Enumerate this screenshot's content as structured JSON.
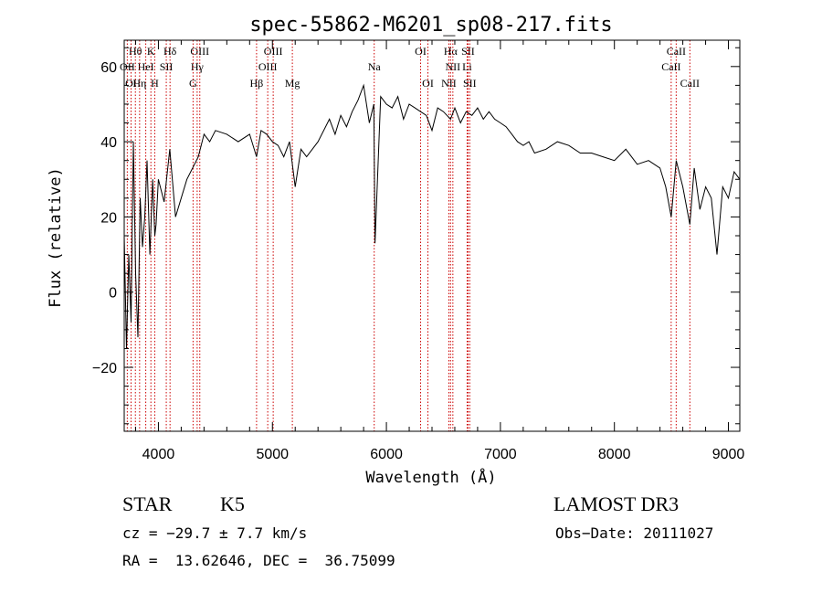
{
  "chart_data": {
    "type": "line",
    "title": "spec-55862-M6201_sp08-217.fits",
    "xlabel": "Wavelength (Å)",
    "ylabel": "Flux (relative)",
    "xlim": [
      3700,
      9100
    ],
    "ylim": [
      -37,
      67
    ],
    "x_ticks": [
      4000,
      5000,
      6000,
      7000,
      8000,
      9000
    ],
    "y_ticks": [
      -20,
      0,
      20,
      40,
      60
    ],
    "series": [
      {
        "name": "spectrum",
        "x": [
          3700,
          3720,
          3740,
          3760,
          3780,
          3800,
          3820,
          3840,
          3860,
          3880,
          3900,
          3925,
          3950,
          3968,
          3980,
          4000,
          4050,
          4100,
          4150,
          4200,
          4250,
          4300,
          4350,
          4400,
          4450,
          4500,
          4600,
          4700,
          4800,
          4861,
          4900,
          4950,
          5000,
          5050,
          5100,
          5150,
          5175,
          5200,
          5250,
          5300,
          5400,
          5500,
          5550,
          5600,
          5650,
          5700,
          5750,
          5800,
          5850,
          5890,
          5900,
          5950,
          6000,
          6050,
          6100,
          6150,
          6200,
          6250,
          6300,
          6350,
          6400,
          6450,
          6500,
          6563,
          6600,
          6650,
          6700,
          6750,
          6800,
          6850,
          6900,
          6950,
          7000,
          7050,
          7100,
          7150,
          7200,
          7250,
          7300,
          7400,
          7500,
          7600,
          7700,
          7800,
          7900,
          8000,
          8100,
          8200,
          8300,
          8400,
          8450,
          8498,
          8542,
          8600,
          8662,
          8700,
          8750,
          8800,
          8850,
          8900,
          8950,
          9000,
          9050,
          9100
        ],
        "values": [
          15,
          -15,
          10,
          -8,
          40,
          5,
          -12,
          25,
          12,
          20,
          35,
          10,
          30,
          15,
          18,
          30,
          24,
          38,
          20,
          25,
          30,
          33,
          36,
          42,
          40,
          43,
          42,
          40,
          42,
          36,
          43,
          42,
          40,
          39,
          36,
          40,
          34,
          28,
          38,
          36,
          40,
          46,
          42,
          47,
          44,
          48,
          51,
          55,
          45,
          50,
          13,
          52,
          50,
          49,
          52,
          46,
          50,
          49,
          48,
          47,
          43,
          49,
          48,
          46,
          49,
          45,
          48,
          47,
          49,
          46,
          48,
          46,
          45,
          44,
          42,
          40,
          39,
          40,
          37,
          38,
          40,
          39,
          37,
          37,
          36,
          35,
          38,
          34,
          35,
          33,
          28,
          20,
          35,
          28,
          18,
          33,
          22,
          28,
          25,
          10,
          28,
          25,
          32,
          30
        ]
      }
    ],
    "line_markers": [
      {
        "label": "Hθ",
        "wavelength": 3798,
        "row": 1
      },
      {
        "label": "K",
        "wavelength": 3934,
        "row": 1
      },
      {
        "label": "Hδ",
        "wavelength": 4102,
        "row": 1
      },
      {
        "label": "OIII",
        "wavelength": 4363,
        "row": 1
      },
      {
        "label": "OIII",
        "wavelength": 5007,
        "row": 1
      },
      {
        "label": "OI",
        "wavelength": 6300,
        "row": 1
      },
      {
        "label": "Hα",
        "wavelength": 6563,
        "row": 1
      },
      {
        "label": "SII",
        "wavelength": 6716,
        "row": 1
      },
      {
        "label": "CaII",
        "wavelength": 8542,
        "row": 1
      },
      {
        "label": "OII",
        "wavelength": 3727,
        "row": 2
      },
      {
        "label": "HeI",
        "wavelength": 3889,
        "row": 2
      },
      {
        "label": "SII",
        "wavelength": 4069,
        "row": 2
      },
      {
        "label": "Hγ",
        "wavelength": 4340,
        "row": 2
      },
      {
        "label": "OIII",
        "wavelength": 4959,
        "row": 2
      },
      {
        "label": "Na",
        "wavelength": 5893,
        "row": 2
      },
      {
        "label": "NII",
        "wavelength": 6583,
        "row": 2
      },
      {
        "label": "Li",
        "wavelength": 6708,
        "row": 2
      },
      {
        "label": "CaII",
        "wavelength": 8498,
        "row": 2
      },
      {
        "label": "OI",
        "wavelength": 3760,
        "row": 3
      },
      {
        "label": "Hη",
        "wavelength": 3835,
        "row": 3
      },
      {
        "label": "H",
        "wavelength": 3968,
        "row": 3
      },
      {
        "label": "G",
        "wavelength": 4304,
        "row": 3
      },
      {
        "label": "Hβ",
        "wavelength": 4861,
        "row": 3
      },
      {
        "label": "Mg",
        "wavelength": 5175,
        "row": 3
      },
      {
        "label": "OI",
        "wavelength": 6364,
        "row": 3
      },
      {
        "label": "NII",
        "wavelength": 6548,
        "row": 3
      },
      {
        "label": "SII",
        "wavelength": 6731,
        "row": 3
      },
      {
        "label": "CaII",
        "wavelength": 8662,
        "row": 3
      }
    ]
  },
  "info": {
    "class": "STAR",
    "subclass": "K5",
    "survey": "LAMOST DR3",
    "cz": "cz = −29.7 ± 7.7 km/s",
    "obs_date": "Obs−Date: 20111027",
    "coords": "RA =  13.62646, DEC =  36.75099"
  },
  "colors": {
    "spectrum": "#000000",
    "markers": "#cc0000",
    "axes": "#000000"
  }
}
